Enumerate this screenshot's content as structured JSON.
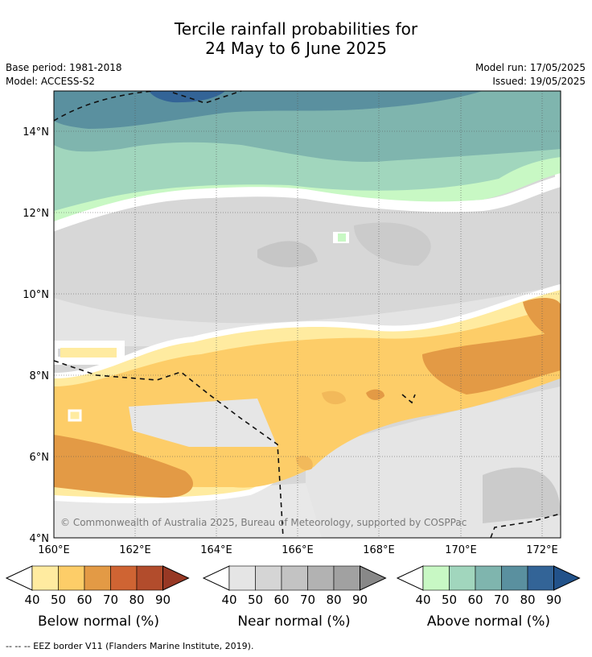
{
  "title": {
    "line1": "Tercile rainfall probabilities for",
    "line2": "24 May to 6 June 2025"
  },
  "meta": {
    "base_period": "Base period: 1981-2018",
    "model": "Model: ACCESS-S2",
    "model_run": "Model run: 17/05/2025",
    "issued": "Issued: 19/05/2025"
  },
  "map": {
    "lon_ticks": [
      "160°E",
      "162°E",
      "164°E",
      "166°E",
      "168°E",
      "170°E",
      "172°E"
    ],
    "lat_ticks": [
      "14°N",
      "12°N",
      "10°N",
      "8°N",
      "6°N",
      "4°N"
    ],
    "copyright": "© Commonwealth of Australia 2025, Bureau of Meteorology, supported by COSPPac"
  },
  "legends": [
    {
      "label": "Below normal (%)",
      "ticks": [
        "40",
        "50",
        "60",
        "70",
        "80",
        "90"
      ],
      "colors": [
        "#ffeba0",
        "#fdcd68",
        "#e39a45",
        "#cf6433",
        "#b24c2c",
        "#973824"
      ]
    },
    {
      "label": "Near normal (%)",
      "ticks": [
        "40",
        "50",
        "60",
        "70",
        "80",
        "90"
      ],
      "colors": [
        "#e5e5e5",
        "#d5d5d5",
        "#c3c3c3",
        "#b2b2b2",
        "#a1a1a1",
        "#888888"
      ]
    },
    {
      "label": "Above normal (%)",
      "ticks": [
        "40",
        "50",
        "60",
        "70",
        "80",
        "90"
      ],
      "colors": [
        "#c8f8c4",
        "#a1d6bd",
        "#7fb5ae",
        "#5a909f",
        "#336497",
        "#22528a"
      ]
    }
  ],
  "footnote": "--  --  -- EEZ border V11 (Flanders Marine Institute, 2019)."
}
